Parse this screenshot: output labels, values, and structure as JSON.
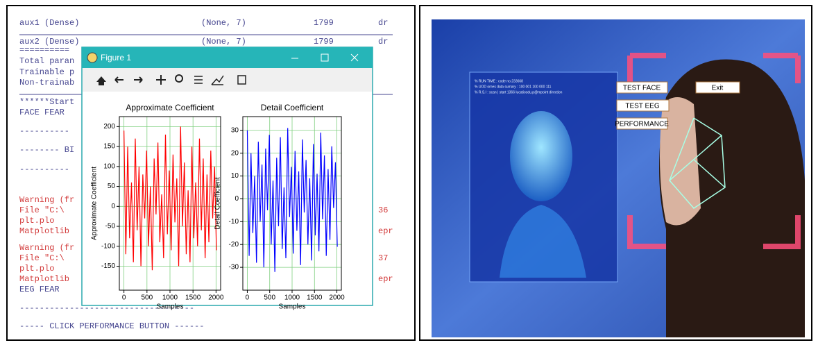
{
  "terminal": {
    "rows": [
      {
        "text": "aux1 (Dense)",
        "shape": "(None, 7)",
        "params": "1799",
        "right": "dr",
        "color": "#45458f"
      },
      {
        "text": "aux2 (Dense)",
        "shape": "(None, 7)",
        "params": "1799",
        "right": "dr",
        "color": "#45458f"
      },
      {
        "text": "==========",
        "color": "#45458f"
      },
      {
        "text": "Total paran",
        "color": "#45458f"
      },
      {
        "text": "Trainable p",
        "color": "#45458f"
      },
      {
        "text": "Non-trainab",
        "color": "#45458f"
      },
      {
        "text": "******Start",
        "color": "#45458f"
      },
      {
        "text": "FACE FEAR",
        "color": "#45458f"
      },
      {
        "text": "----------",
        "color": "#45458f"
      },
      {
        "text": "-------- BI",
        "color": "#45458f"
      },
      {
        "text": "----------",
        "color": "#45458f"
      },
      {
        "text": "Warning (fr",
        "color": "#d23a3a"
      },
      {
        "text": "  File \"C:\\",
        "right": "36",
        "color": "#d23a3a"
      },
      {
        "text": "    plt.plo",
        "color": "#d23a3a"
      },
      {
        "text": "Matplotlib",
        "right": "epr",
        "color": "#d23a3a"
      },
      {
        "text": "Warning (fr",
        "color": "#d23a3a"
      },
      {
        "text": "  File \"C:\\",
        "right": "37",
        "color": "#d23a3a"
      },
      {
        "text": "    plt.plo",
        "color": "#d23a3a"
      },
      {
        "text": "Matplotlib",
        "right": "epr",
        "color": "#d23a3a"
      },
      {
        "text": "EEG FEAR",
        "color": "#45458f"
      },
      {
        "text": "-----------------------------------",
        "color": "#45458f"
      },
      {
        "text": "----- CLICK PERFORMANCE BUTTON ------",
        "color": "#45458f"
      }
    ]
  },
  "figure": {
    "title": "Figure 1"
  },
  "chart_data": [
    {
      "type": "line",
      "title": "Approximate Coefficient",
      "xlabel": "Samples",
      "ylabel": "Approximate Coefficient",
      "x": [
        0,
        41,
        82,
        123,
        164,
        205,
        246,
        287,
        328,
        369,
        410,
        451,
        492,
        533,
        574,
        615,
        656,
        697,
        738,
        779,
        820,
        861,
        902,
        943,
        984,
        1025,
        1066,
        1107,
        1148,
        1189,
        1230,
        1271,
        1312,
        1353,
        1394,
        1435,
        1476,
        1517,
        1558,
        1599,
        1640,
        1681,
        1722,
        1763,
        1804,
        1845,
        1886,
        1927,
        1968,
        2009
      ],
      "series": [
        {
          "color": "#ff0000",
          "values": [
            190,
            -120,
            150,
            -80,
            60,
            -140,
            170,
            -60,
            100,
            -150,
            80,
            -30,
            140,
            -100,
            50,
            -160,
            120,
            -20,
            160,
            -90,
            30,
            -130,
            180,
            -70,
            90,
            -110,
            130,
            -40,
            70,
            -150,
            200,
            -50,
            110,
            -120,
            40,
            -140,
            150,
            -80,
            60,
            -100,
            170,
            -60,
            120,
            -130,
            80,
            -90,
            140,
            -30,
            100,
            -110
          ]
        }
      ],
      "xlim": [
        -100,
        2100
      ],
      "xticks": [
        0,
        500,
        1000,
        1500,
        2000
      ],
      "ylim": [
        -210,
        225
      ],
      "yticks": [
        -150,
        -100,
        -50,
        0,
        50,
        100,
        150,
        200
      ],
      "grid": true
    },
    {
      "type": "line",
      "title": "Detail Coefficient",
      "xlabel": "Samples",
      "ylabel": "Detail Coefficient",
      "x": [
        0,
        41,
        82,
        123,
        164,
        205,
        246,
        287,
        328,
        369,
        410,
        451,
        492,
        533,
        574,
        615,
        656,
        697,
        738,
        779,
        820,
        861,
        902,
        943,
        984,
        1025,
        1066,
        1107,
        1148,
        1189,
        1230,
        1271,
        1312,
        1353,
        1394,
        1435,
        1476,
        1517,
        1558,
        1599,
        1640,
        1681,
        1722,
        1763,
        1804,
        1845,
        1886,
        1927,
        1968,
        2009
      ],
      "series": [
        {
          "color": "#0000ff",
          "values": [
            30,
            -25,
            20,
            -15,
            10,
            -28,
            25,
            -10,
            15,
            -30,
            22,
            -5,
            28,
            -20,
            8,
            -32,
            18,
            -12,
            27,
            -22,
            5,
            -26,
            31,
            -8,
            14,
            -24,
            21,
            -14,
            12,
            -29,
            26,
            -6,
            17,
            -20,
            9,
            -27,
            24,
            -16,
            11,
            -23,
            29,
            -9,
            19,
            -25,
            13,
            -18,
            23,
            -4,
            16,
            -21
          ]
        }
      ],
      "xlim": [
        -100,
        2100
      ],
      "xticks": [
        0,
        500,
        1000,
        1500,
        2000
      ],
      "ylim": [
        -40,
        36
      ],
      "yticks": [
        -30,
        -20,
        -10,
        0,
        10,
        20,
        30
      ],
      "grid": true
    }
  ],
  "app": {
    "overlay_lines": [
      "% RUN TIME : code no.233668",
      "% UOD ornes data sumary : 100 001 100 000 111",
      "% R.S.I : scan | start 1366 lucatiosdu.p@mpoint direction"
    ],
    "buttons": {
      "test_face": "TEST FACE",
      "exit": "Exit",
      "test_eeg": "TEST EEG",
      "performance": "PERFORMANCE"
    }
  }
}
